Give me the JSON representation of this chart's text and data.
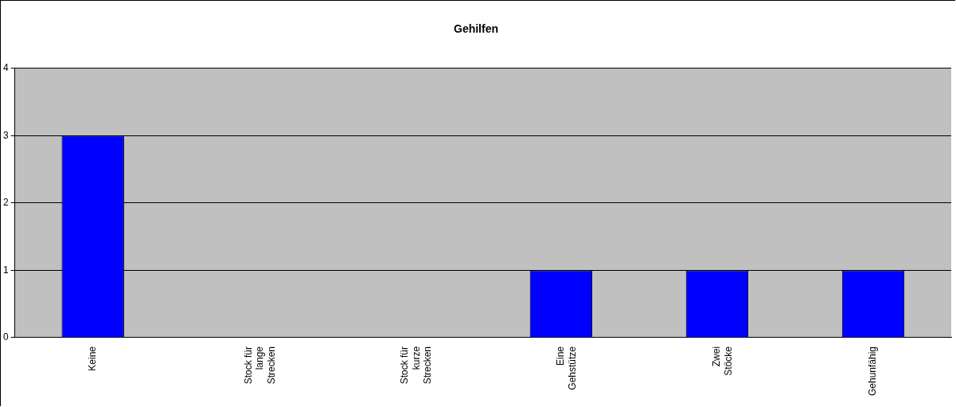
{
  "chart_data": {
    "type": "bar",
    "title": "Gehilfen",
    "categories": [
      "Keine",
      "Stock für lange Strecken",
      "Stock für kurze Strecken",
      "Eine Gehstütze",
      "Zwei Stöcke",
      "Gehunfähig"
    ],
    "values": [
      3,
      0,
      0,
      1,
      1,
      1
    ],
    "color": "#0000ff",
    "ylim": [
      0,
      4
    ],
    "yticks": [
      0,
      1,
      2,
      3,
      4
    ],
    "grid": "y",
    "legend": false
  }
}
